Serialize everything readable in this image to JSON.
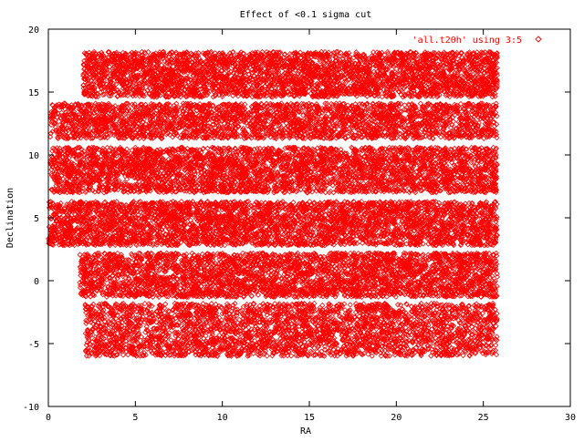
{
  "chart_data": {
    "type": "scatter",
    "title": "Effect of <0.1 sigma cut",
    "xlabel": "RA",
    "ylabel": "Declination",
    "xlim": [
      0,
      30
    ],
    "ylim": [
      -10,
      20
    ],
    "xticks": [
      0,
      5,
      10,
      15,
      20,
      25,
      30
    ],
    "yticks": [
      -10,
      -5,
      0,
      5,
      10,
      15,
      20
    ],
    "grid": false,
    "legend_position": "top-right",
    "series": [
      {
        "name": "'all.t20h' using 3:5",
        "color": "#ff0000",
        "marker": "diamond-open",
        "description": "dense field of points in horizontal bands",
        "bands": [
          {
            "ra": [
              2.0,
              25.8
            ],
            "dec": [
              14.6,
              18.2
            ],
            "density": 1.0
          },
          {
            "ra": [
              0.1,
              25.8
            ],
            "dec": [
              11.3,
              14.1
            ],
            "density": 0.9
          },
          {
            "ra": [
              0.1,
              25.8
            ],
            "dec": [
              7.0,
              10.6
            ],
            "density": 0.95
          },
          {
            "ra": [
              0.0,
              25.8
            ],
            "dec": [
              2.8,
              6.3
            ],
            "density": 1.0
          },
          {
            "ra": [
              1.8,
              25.8
            ],
            "dec": [
              -1.3,
              2.2
            ],
            "density": 0.95
          },
          {
            "ra": [
              2.1,
              25.8
            ],
            "dec": [
              -6.0,
              -1.8
            ],
            "density": 0.75
          }
        ]
      }
    ]
  }
}
